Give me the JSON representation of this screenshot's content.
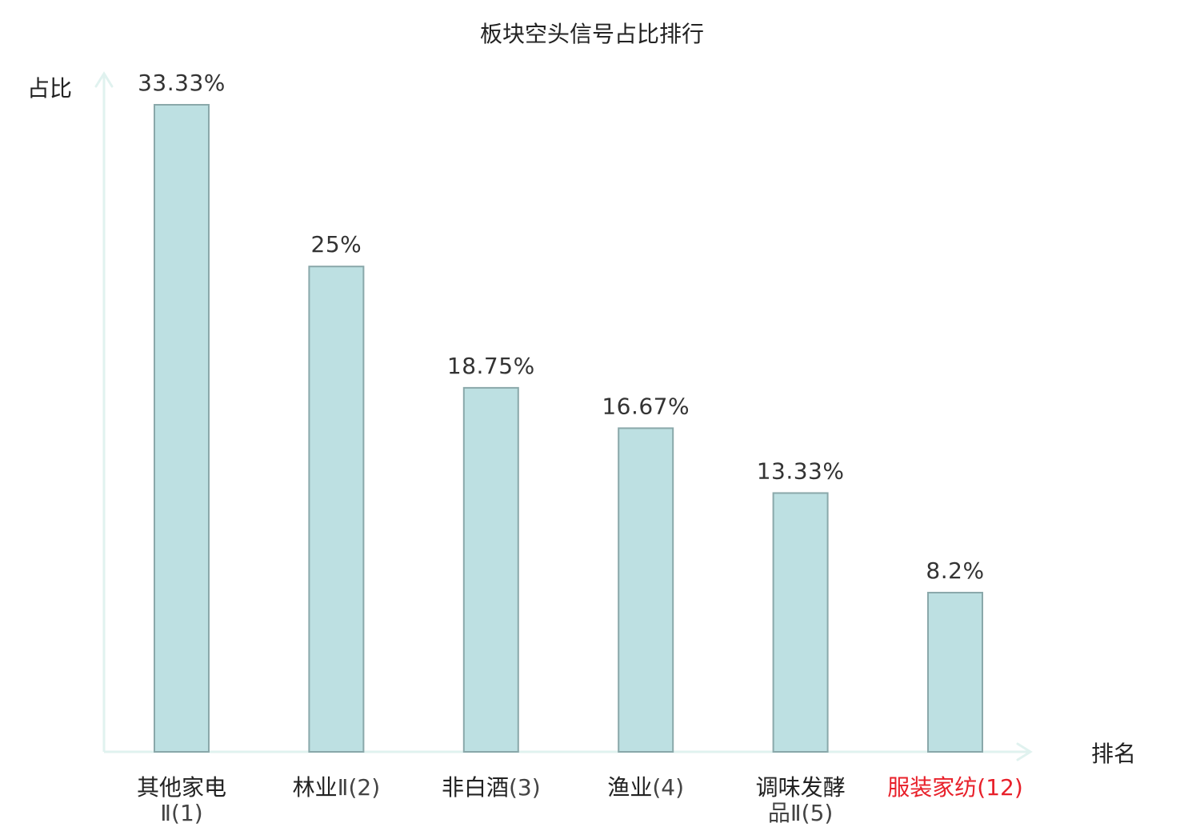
{
  "chart_data": {
    "type": "bar",
    "title": "板块空头信号占比排行",
    "ylabel": "占比",
    "xlabel": "排名",
    "categories": [
      {
        "name": "其他家电",
        "rank": "Ⅱ(1)",
        "highlight": false
      },
      {
        "name": "林业",
        "rank": "Ⅱ(2)",
        "highlight": false
      },
      {
        "name": "非白酒",
        "rank": "(3)",
        "highlight": false
      },
      {
        "name": "渔业",
        "rank": "(4)",
        "highlight": false
      },
      {
        "name": "调味发酵",
        "rank": "品Ⅱ(5)",
        "highlight": false
      },
      {
        "name": "服装家纺",
        "rank": "(12)",
        "highlight": true
      }
    ],
    "values": [
      33.33,
      25,
      18.75,
      16.67,
      13.33,
      8.2
    ],
    "value_labels": [
      "33.33%",
      "25%",
      "18.75%",
      "16.67%",
      "13.33%",
      "8.2%"
    ],
    "ylim": [
      0,
      33.33
    ],
    "grid": false,
    "legend": "none",
    "colors": {
      "bar_fill": "#bde0e2",
      "bar_stroke": "#8aa8aa",
      "axis": "#e0f2ef",
      "text": "#222222",
      "value_text": "#333333",
      "category_text": "#222222",
      "rank_text": "#444444",
      "highlight": "#e8202a"
    }
  }
}
